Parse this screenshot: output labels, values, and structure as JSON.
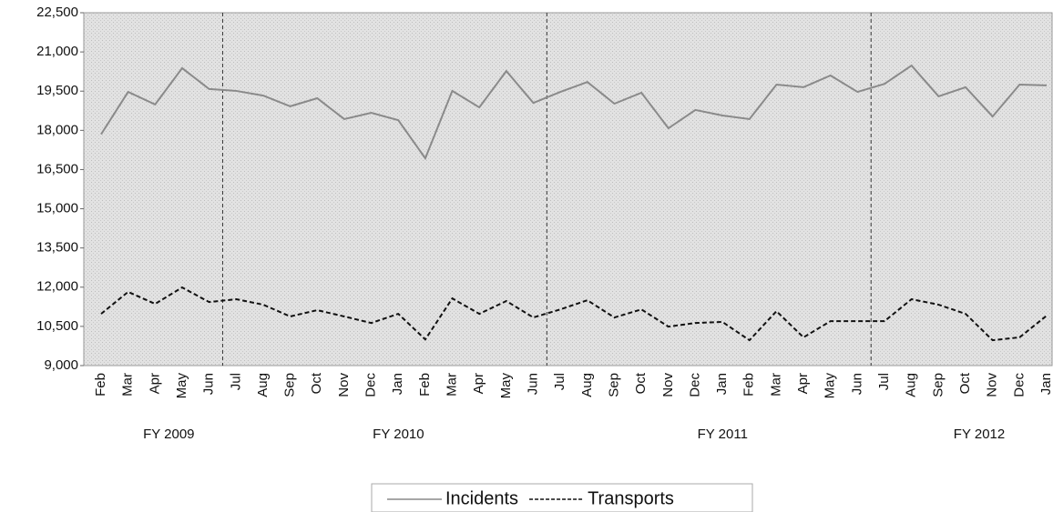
{
  "chart_data": {
    "type": "line",
    "categories": [
      "Feb",
      "Mar",
      "Apr",
      "May",
      "Jun",
      "Jul",
      "Aug",
      "Sep",
      "Oct",
      "Nov",
      "Dec",
      "Jan",
      "Feb",
      "Mar",
      "Apr",
      "May",
      "Jun",
      "Jul",
      "Aug",
      "Sep",
      "Oct",
      "Nov",
      "Dec",
      "Jan",
      "Feb",
      "Mar",
      "Apr",
      "May",
      "Jun",
      "Jul",
      "Aug",
      "Sep",
      "Oct",
      "Nov",
      "Dec",
      "Jan"
    ],
    "fiscal_years": [
      "FY 2009",
      "FY 2010",
      "FY 2011",
      "FY 2012"
    ],
    "series": [
      {
        "name": "Incidents",
        "color": "#8a8a8a",
        "style": "solid",
        "values": [
          17850,
          19470,
          18990,
          20380,
          19580,
          19510,
          19330,
          18920,
          19230,
          18430,
          18670,
          18390,
          16930,
          19510,
          18880,
          20270,
          19050,
          19470,
          19850,
          19020,
          19440,
          18080,
          18780,
          18570,
          18430,
          19750,
          19650,
          20100,
          19470,
          19780,
          20480,
          19300,
          19650,
          18530,
          19750,
          19720
        ]
      },
      {
        "name": "Transports",
        "color": "#111111",
        "style": "dashed",
        "values": [
          10980,
          11820,
          11360,
          11990,
          11430,
          11540,
          11330,
          10880,
          11120,
          10880,
          10630,
          10980,
          10000,
          11570,
          10980,
          11470,
          10840,
          11150,
          11500,
          10840,
          11150,
          10490,
          10630,
          10670,
          9970,
          11080,
          10080,
          10700,
          10700,
          10700,
          11540,
          11330,
          10980,
          9970,
          10080,
          10910
        ]
      }
    ],
    "ylim": [
      9000,
      22500
    ],
    "yticks": [
      {
        "value": 9000,
        "label": "9,000"
      },
      {
        "value": 10500,
        "label": "10,500"
      },
      {
        "value": 12000,
        "label": "12,000"
      },
      {
        "value": 13500,
        "label": "13,500"
      },
      {
        "value": 15000,
        "label": "15,000"
      },
      {
        "value": 16500,
        "label": "16,500"
      },
      {
        "value": 18000,
        "label": "18,000"
      },
      {
        "value": 19500,
        "label": "19,500"
      },
      {
        "value": 21000,
        "label": "21,000"
      },
      {
        "value": 22500,
        "label": "22,500"
      }
    ],
    "grid": false,
    "legend": "bottom"
  }
}
